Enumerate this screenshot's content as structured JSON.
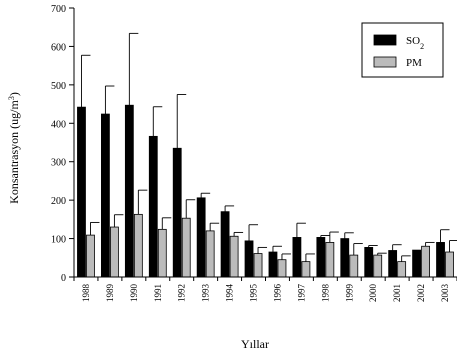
{
  "chart_data": {
    "type": "bar",
    "xlabel": "Yıllar",
    "ylabel": "Konsantrasyon (ug/m³)",
    "ylabel_parts": {
      "main": "Konsantrasyon (ug/m",
      "sup": "3",
      "close": ")"
    },
    "ylim": [
      0,
      700
    ],
    "yticks": [
      0,
      100,
      200,
      300,
      400,
      500,
      600,
      700
    ],
    "grid": false,
    "legend_position": "top-right",
    "categories": [
      "1988",
      "1989",
      "1990",
      "1991",
      "1992",
      "1993",
      "1994",
      "1995",
      "1996",
      "1997",
      "1998",
      "1999",
      "2000",
      "2001",
      "2002",
      "2003"
    ],
    "series": [
      {
        "name": "SO2",
        "legend_parts": {
          "main": "SO",
          "sub": "2"
        },
        "color": "#000000",
        "values": [
          442,
          424,
          447,
          366,
          335,
          206,
          170,
          94,
          65,
          103,
          103,
          100,
          77,
          69,
          70,
          90
        ],
        "errors": [
          135,
          73,
          187,
          77,
          140,
          12,
          15,
          42,
          15,
          37,
          5,
          15,
          5,
          15,
          0,
          33
        ]
      },
      {
        "name": "PM",
        "legend_parts": {
          "main": "PM",
          "sub": ""
        },
        "color": "#bbbbbb",
        "values": [
          109,
          130,
          163,
          124,
          153,
          120,
          106,
          61,
          45,
          40,
          90,
          57,
          57,
          40,
          80,
          65
        ],
        "errors": [
          33,
          32,
          63,
          30,
          48,
          20,
          10,
          16,
          15,
          20,
          27,
          30,
          5,
          15,
          10,
          30
        ]
      }
    ]
  }
}
